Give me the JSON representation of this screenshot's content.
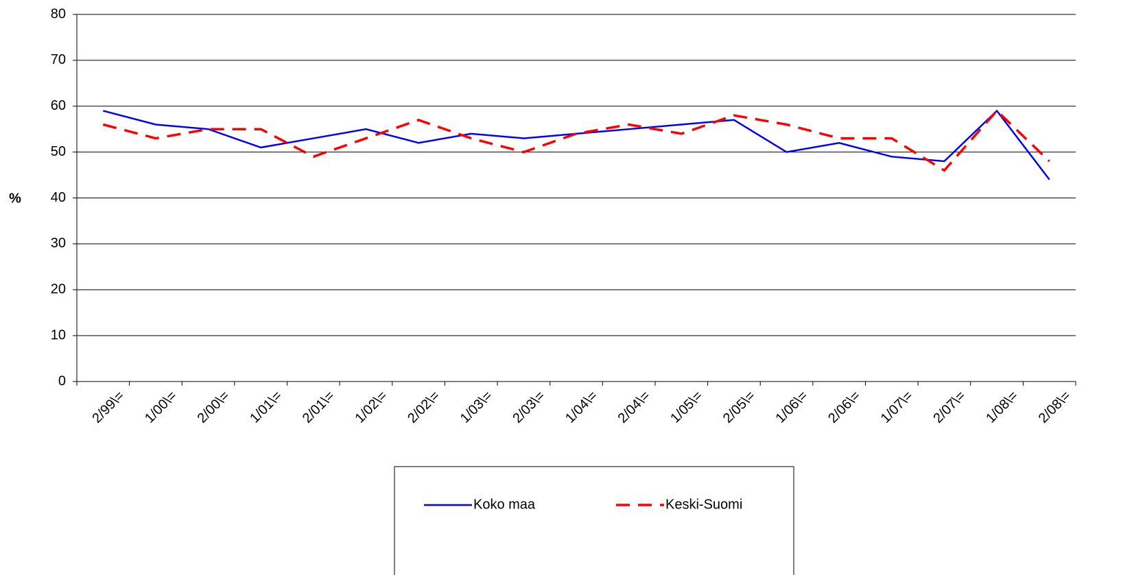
{
  "chart_data": {
    "type": "line",
    "y_label": "%",
    "categories": [
      "2/99\\=",
      "1/00\\=",
      "2/00\\=",
      "1/01\\=",
      "2/01\\=",
      "1/02\\=",
      "2/02\\=",
      "1/03\\=",
      "2/03\\=",
      "1/04\\=",
      "2/04\\=",
      "1/05\\=",
      "2/05\\=",
      "1/06\\=",
      "2/06\\=",
      "1/07\\=",
      "2/07\\=",
      "1/08\\=",
      "2/08\\="
    ],
    "series": [
      {
        "name": "Koko maa",
        "color": "#0000ff",
        "values": [
          59,
          56,
          55,
          51,
          53,
          55,
          52,
          54,
          53,
          54,
          55,
          56,
          57,
          50,
          52,
          49,
          48,
          59,
          44
        ]
      },
      {
        "name": "Keski-Suomi",
        "color": "#ff0000",
        "dashed": true,
        "values": [
          56,
          53,
          55,
          55,
          49,
          53,
          57,
          53,
          50,
          54,
          56,
          54,
          58,
          56,
          53,
          53,
          46,
          59,
          48
        ]
      }
    ],
    "ylim": [
      0,
      80
    ],
    "yticks": [
      0,
      10,
      20,
      30,
      40,
      50,
      60,
      70,
      80
    ],
    "grid": true,
    "legend": "bottom"
  }
}
